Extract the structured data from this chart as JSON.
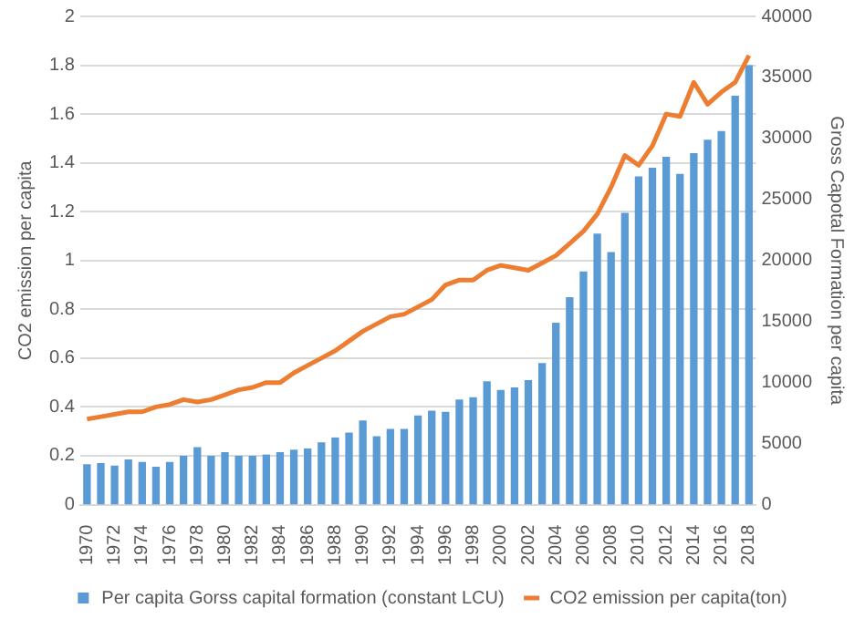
{
  "chart_data": {
    "type": "bar",
    "categories": [
      "1970",
      null,
      "1972",
      null,
      "1974",
      null,
      "1976",
      null,
      "1978",
      null,
      "1980",
      null,
      "1982",
      null,
      "1984",
      null,
      "1986",
      null,
      "1988",
      null,
      "1990",
      null,
      "1992",
      null,
      "1994",
      null,
      "1996",
      null,
      "1998",
      null,
      "2000",
      null,
      "2002",
      null,
      "2004",
      null,
      "2006",
      null,
      "2008",
      null,
      "2010",
      null,
      "2012",
      null,
      "2014",
      null,
      "2016",
      null,
      "2018"
    ],
    "series": [
      {
        "name": "Per capita Gorss capital formation (constant LCU)",
        "axis": "y2",
        "color": "#5b9bd5",
        "values": [
          3300,
          3400,
          3200,
          3700,
          3500,
          3100,
          3500,
          4000,
          4700,
          4000,
          4300,
          4000,
          4000,
          4100,
          4300,
          4500,
          4600,
          5100,
          5500,
          5900,
          6900,
          5600,
          6200,
          6200,
          7300,
          7700,
          7600,
          8600,
          8800,
          10100,
          9400,
          9600,
          10200,
          11600,
          14900,
          17000,
          19100,
          22200,
          20700,
          23900,
          26900,
          27600,
          28500,
          27100,
          28800,
          29900,
          30600,
          33500,
          36000
        ]
      },
      {
        "name": "CO2 emission per capita(ton)",
        "type": "line",
        "axis": "y",
        "color": "#ed7d31",
        "values": [
          0.35,
          0.36,
          0.37,
          0.38,
          0.38,
          0.4,
          0.41,
          0.43,
          0.42,
          0.43,
          0.45,
          0.47,
          0.48,
          0.5,
          0.5,
          0.54,
          0.57,
          0.6,
          0.63,
          0.67,
          0.71,
          0.74,
          0.77,
          0.78,
          0.81,
          0.84,
          0.9,
          0.92,
          0.92,
          0.96,
          0.98,
          0.97,
          0.96,
          0.99,
          1.02,
          1.07,
          1.12,
          1.19,
          1.3,
          1.43,
          1.39,
          1.47,
          1.6,
          1.59,
          1.73,
          1.64,
          1.69,
          1.73,
          1.84
        ]
      }
    ],
    "ylabel": "CO2 emission per capita",
    "y2label": "Gross Capotal Formation per capita",
    "ylim": [
      0,
      2
    ],
    "yticks": [
      0,
      0.2,
      0.4,
      0.6,
      0.8,
      1,
      1.2,
      1.4,
      1.6,
      1.8,
      2
    ],
    "y2lim": [
      0,
      40000
    ],
    "y2ticks": [
      0,
      5000,
      10000,
      15000,
      20000,
      25000,
      30000,
      35000,
      40000
    ],
    "grid": "y",
    "legend": "bottom",
    "marker": "none",
    "line_style": "solid"
  }
}
